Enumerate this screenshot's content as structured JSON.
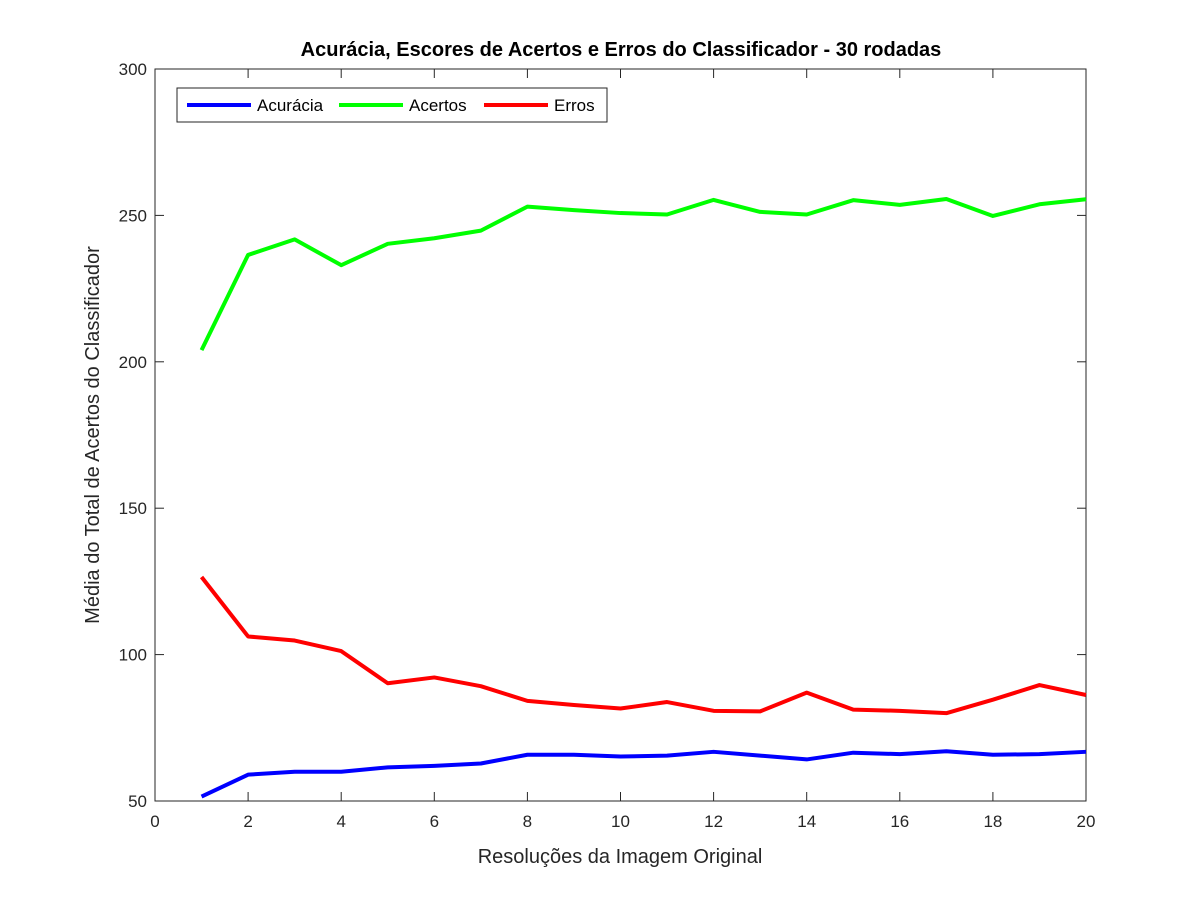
{
  "chart_data": {
    "type": "line",
    "title": "Acurácia, Escores de Acertos e Erros do Classificador - 30 rodadas",
    "xlabel": "Resoluções da Imagem Original",
    "ylabel": "Média do Total de Acertos do Classificador",
    "xlim": [
      0,
      20
    ],
    "ylim": [
      50,
      300
    ],
    "xticks": [
      0,
      2,
      4,
      6,
      8,
      10,
      12,
      14,
      16,
      18,
      20
    ],
    "yticks": [
      50,
      100,
      150,
      200,
      250,
      300
    ],
    "grid": false,
    "legend_position": "top-left",
    "legend_orientation": "horizontal",
    "x": [
      1,
      2,
      3,
      4,
      5,
      6,
      7,
      8,
      9,
      10,
      11,
      12,
      13,
      14,
      15,
      16,
      17,
      18,
      19,
      20
    ],
    "series": [
      {
        "name": "Acurácia",
        "color": "#0000ff",
        "values": [
          51.5,
          59,
          60,
          60,
          61.5,
          62,
          62.8,
          65.8,
          65.8,
          65.2,
          65.5,
          66.8,
          65.5,
          64.2,
          66.5,
          66,
          67,
          65.8,
          66,
          66.8
        ]
      },
      {
        "name": "Acertos",
        "color": "#00ff00",
        "values": [
          204,
          236.5,
          241.8,
          233,
          240.3,
          242.2,
          244.8,
          253,
          251.8,
          250.8,
          250.3,
          255.3,
          251.2,
          250.3,
          255.2,
          253.6,
          255.6,
          249.8,
          253.8,
          255.5
        ]
      },
      {
        "name": "Erros",
        "color": "#ff0000",
        "values": [
          126.5,
          106.2,
          104.8,
          101.2,
          90.2,
          92.2,
          89.2,
          84.2,
          82.8,
          81.6,
          83.8,
          80.8,
          80.6,
          87,
          81.2,
          80.8,
          80,
          84.6,
          89.6,
          86.2
        ]
      }
    ]
  }
}
